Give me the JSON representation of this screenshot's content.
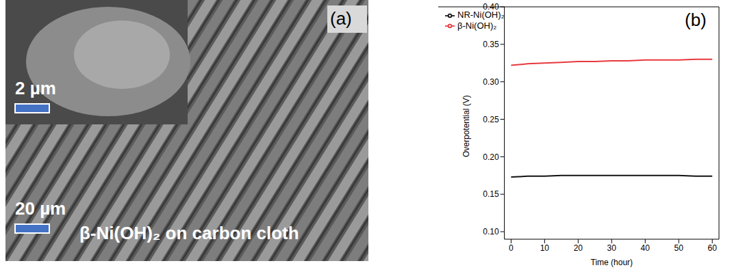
{
  "panel_a": {
    "label": "(a)",
    "caption": "β-Ni(OH)₂ on carbon cloth",
    "scale_bar": "20 µm",
    "inset": {
      "scale_bar": "2 µm"
    }
  },
  "chart_data": {
    "type": "line",
    "panel_label": "(b)",
    "x_label": "Time (hour)",
    "y_label": "Overpotential (V)",
    "x": [
      0,
      5,
      10,
      15,
      20,
      25,
      30,
      35,
      40,
      45,
      50,
      55,
      60
    ],
    "series": [
      {
        "name": "β-Ni(OH)₂",
        "color": "#e8383d",
        "values": [
          0.322,
          0.324,
          0.325,
          0.326,
          0.327,
          0.327,
          0.328,
          0.328,
          0.329,
          0.329,
          0.329,
          0.33,
          0.33
        ]
      },
      {
        "name": "NR-Ni(OH)₂",
        "color": "#111111",
        "values": [
          0.173,
          0.174,
          0.174,
          0.175,
          0.175,
          0.175,
          0.175,
          0.175,
          0.175,
          0.175,
          0.175,
          0.174,
          0.174
        ]
      }
    ],
    "xlim": [
      -2,
      62
    ],
    "xticks": [
      0,
      10,
      20,
      30,
      40,
      50,
      60
    ],
    "ylim": [
      0.09,
      0.4
    ],
    "yticks": [
      {
        "value": 0.1,
        "label": "0.10"
      },
      {
        "value": 0.15,
        "label": "0.15"
      },
      {
        "value": 0.2,
        "label": "0.20"
      },
      {
        "value": 0.25,
        "label": "0.25"
      },
      {
        "value": 0.3,
        "label": "0.30"
      },
      {
        "value": 0.35,
        "label": "0.35"
      },
      {
        "value": 0.4,
        "label": "0.40"
      }
    ],
    "legend": "top-left",
    "grid": false
  }
}
